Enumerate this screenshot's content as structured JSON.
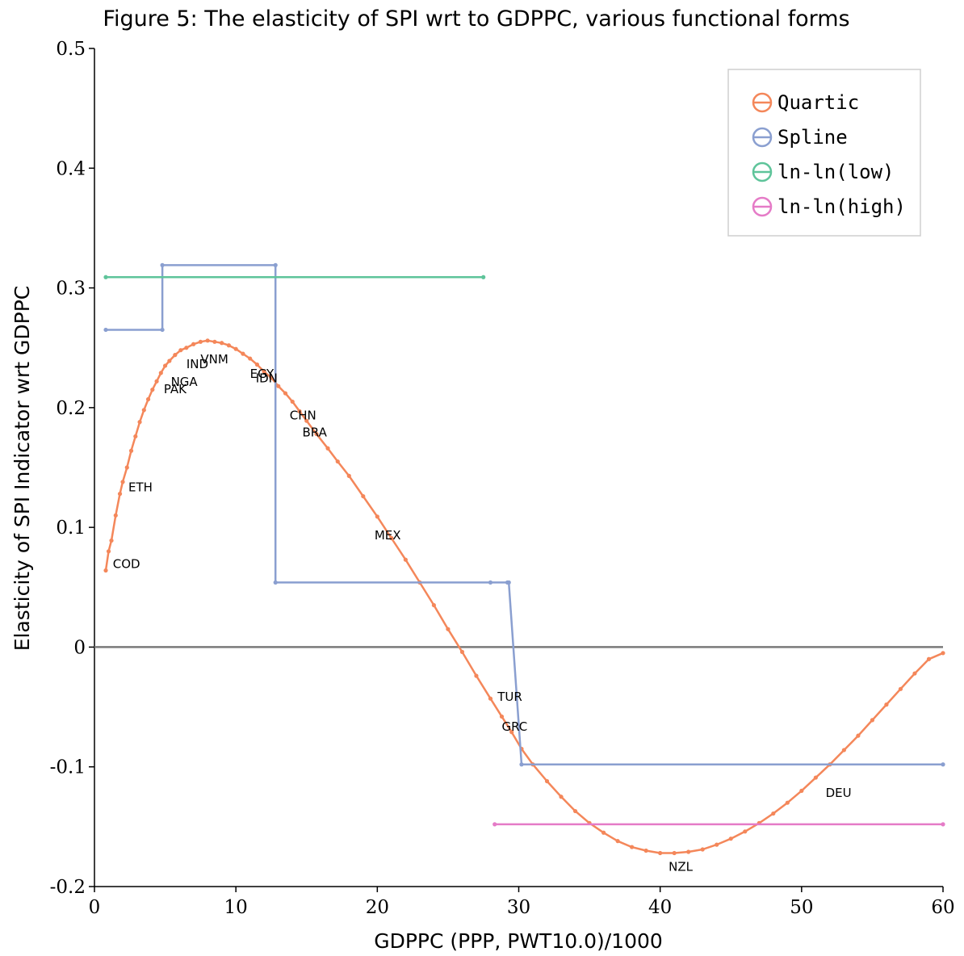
{
  "chart_data": {
    "type": "line",
    "title": "Figure 5: The elasticity of SPI wrt to GDPPC, various functional forms",
    "xlabel": "GDPPC (PPP, PWT10.0)/1000",
    "ylabel": "Elasticity of SPI Indicator wrt GDPPC",
    "xlim": [
      0,
      60
    ],
    "ylim": [
      -0.2,
      0.5
    ],
    "xticks": [
      0,
      10,
      20,
      30,
      40,
      50,
      60
    ],
    "yticks": [
      -0.2,
      -0.1,
      0,
      0.1,
      0.2,
      0.3,
      0.4,
      0.5
    ],
    "ytick_labels": [
      "-0.2",
      "-0.1",
      "0",
      "0.1",
      "0.2",
      "0.3",
      "0.4",
      "0.5"
    ],
    "xtick_labels": [
      "0",
      "10",
      "20",
      "30",
      "40",
      "50",
      "60"
    ],
    "legend_position": "top-right",
    "zero_line": true,
    "series": [
      {
        "name": "Quartic",
        "color": "#f4875a",
        "x": [
          0.8,
          1.0,
          1.2,
          1.5,
          1.8,
          2.0,
          2.3,
          2.6,
          2.9,
          3.2,
          3.5,
          3.8,
          4.1,
          4.4,
          4.7,
          5.0,
          5.3,
          5.7,
          6.1,
          6.5,
          7.0,
          7.5,
          8.0,
          8.5,
          9.0,
          9.5,
          10.0,
          10.5,
          11.0,
          11.5,
          12.0,
          12.5,
          13.0,
          13.5,
          14.0,
          14.5,
          15.0,
          15.7,
          16.5,
          17.2,
          18.0,
          19.0,
          20.0,
          21.0,
          22.0,
          23.0,
          24.0,
          25.0,
          26.0,
          27.0,
          28.0,
          28.8,
          29.5,
          30.2,
          31.0,
          32.0,
          33.0,
          34.0,
          35.0,
          36.0,
          37.0,
          38.0,
          39.0,
          40.0,
          41.0,
          42.0,
          43.0,
          44.0,
          45.0,
          46.0,
          47.0,
          48.0,
          49.0,
          50.0,
          51.0,
          52.0,
          53.0,
          54.0,
          55.0,
          56.0,
          57.0,
          58.0,
          59.0,
          60.0
        ],
        "values": [
          0.064,
          0.08,
          0.089,
          0.11,
          0.128,
          0.138,
          0.15,
          0.164,
          0.176,
          0.188,
          0.198,
          0.207,
          0.215,
          0.222,
          0.229,
          0.235,
          0.239,
          0.244,
          0.248,
          0.25,
          0.253,
          0.255,
          0.256,
          0.255,
          0.254,
          0.252,
          0.249,
          0.245,
          0.241,
          0.236,
          0.23,
          0.225,
          0.218,
          0.212,
          0.205,
          0.197,
          0.189,
          0.178,
          0.166,
          0.155,
          0.143,
          0.126,
          0.109,
          0.091,
          0.073,
          0.054,
          0.035,
          0.015,
          -0.004,
          -0.024,
          -0.043,
          -0.058,
          -0.071,
          -0.085,
          -0.098,
          -0.112,
          -0.125,
          -0.137,
          -0.147,
          -0.155,
          -0.162,
          -0.167,
          -0.17,
          -0.172,
          -0.172,
          -0.171,
          -0.169,
          -0.165,
          -0.16,
          -0.154,
          -0.147,
          -0.139,
          -0.13,
          -0.12,
          -0.109,
          -0.098,
          -0.086,
          -0.074,
          -0.061,
          -0.048,
          -0.035,
          -0.022,
          -0.01,
          -0.005
        ]
      },
      {
        "name": "Spline",
        "color": "#8a9fd0",
        "x": [
          0.8,
          4.8,
          4.8,
          12.8,
          12.8,
          28.0,
          29.2,
          29.3,
          30.2,
          60.0
        ],
        "values": [
          0.265,
          0.265,
          0.319,
          0.319,
          0.054,
          0.054,
          0.054,
          0.054,
          -0.098,
          -0.098
        ]
      },
      {
        "name": "ln-ln(low)",
        "color": "#5ec49a",
        "x": [
          0.8,
          27.5
        ],
        "values": [
          0.309,
          0.309
        ]
      },
      {
        "name": "ln-ln(high)",
        "color": "#e57bc7",
        "x": [
          28.3,
          60.0
        ],
        "values": [
          -0.148,
          -0.148
        ]
      }
    ],
    "annotations": [
      {
        "text": "COD",
        "x": 1.3,
        "y": 0.066
      },
      {
        "text": "ETH",
        "x": 2.4,
        "y": 0.13
      },
      {
        "text": "PAK",
        "x": 4.9,
        "y": 0.212
      },
      {
        "text": "NGA",
        "x": 5.4,
        "y": 0.218
      },
      {
        "text": "IND",
        "x": 6.5,
        "y": 0.233
      },
      {
        "text": "VNM",
        "x": 7.5,
        "y": 0.237
      },
      {
        "text": "EGY",
        "x": 11.0,
        "y": 0.225
      },
      {
        "text": "IDN",
        "x": 11.4,
        "y": 0.221
      },
      {
        "text": "CHN",
        "x": 13.8,
        "y": 0.19
      },
      {
        "text": "BRA",
        "x": 14.7,
        "y": 0.176
      },
      {
        "text": "MEX",
        "x": 19.8,
        "y": 0.09
      },
      {
        "text": "TUR",
        "x": 28.5,
        "y": -0.045
      },
      {
        "text": "GRC",
        "x": 28.8,
        "y": -0.07
      },
      {
        "text": "NZL",
        "x": 40.6,
        "y": -0.187
      },
      {
        "text": "DEU",
        "x": 51.7,
        "y": -0.125
      }
    ]
  }
}
